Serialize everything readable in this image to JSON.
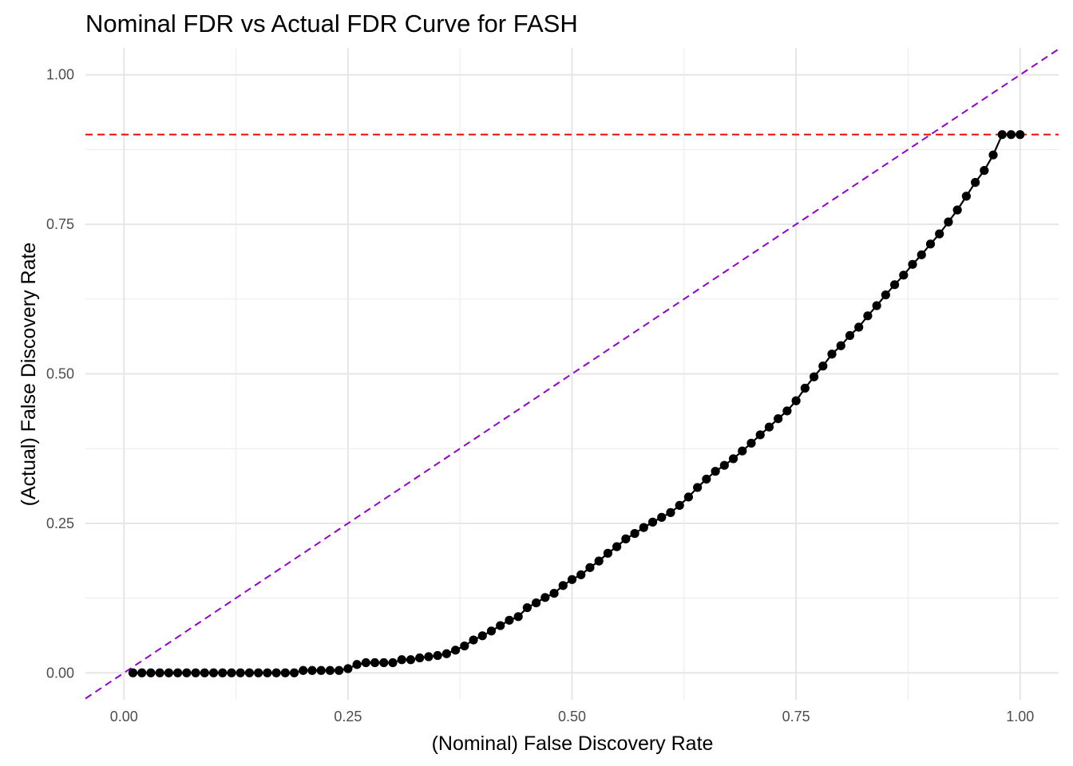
{
  "chart_data": {
    "type": "line",
    "title": "Nominal FDR vs Actual FDR Curve for FASH",
    "xlabel": "(Nominal) False Discovery Rate",
    "ylabel": "(Actual) False Discovery Rate",
    "xlim": [
      -0.043,
      1.043
    ],
    "ylim": [
      -0.045,
      1.045
    ],
    "x_ticks": [
      0,
      0.25,
      0.5,
      0.75,
      1
    ],
    "x_tick_labels": [
      "0.00",
      "0.25",
      "0.50",
      "0.75",
      "1.00"
    ],
    "y_ticks": [
      0,
      0.25,
      0.5,
      0.75,
      1
    ],
    "y_tick_labels": [
      "0.00",
      "0.25",
      "0.50",
      "0.75",
      "1.00"
    ],
    "grid": true,
    "series": [
      {
        "color": "#000000",
        "markers": true,
        "x": [
          0.01,
          0.02,
          0.03,
          0.04,
          0.05,
          0.06,
          0.07,
          0.08,
          0.09,
          0.1,
          0.11,
          0.12,
          0.13,
          0.14,
          0.15,
          0.16,
          0.17,
          0.18,
          0.19,
          0.2,
          0.21,
          0.22,
          0.23,
          0.24,
          0.25,
          0.26,
          0.27,
          0.28,
          0.29,
          0.3,
          0.31,
          0.32,
          0.33,
          0.34,
          0.35,
          0.36,
          0.37,
          0.38,
          0.39,
          0.4,
          0.41,
          0.42,
          0.43,
          0.44,
          0.45,
          0.46,
          0.47,
          0.48,
          0.49,
          0.5,
          0.51,
          0.52,
          0.53,
          0.54,
          0.55,
          0.56,
          0.57,
          0.58,
          0.59,
          0.6,
          0.61,
          0.62,
          0.63,
          0.64,
          0.65,
          0.66,
          0.67,
          0.68,
          0.69,
          0.7,
          0.71,
          0.72,
          0.73,
          0.74,
          0.75,
          0.76,
          0.77,
          0.78,
          0.79,
          0.8,
          0.81,
          0.82,
          0.83,
          0.84,
          0.85,
          0.86,
          0.87,
          0.88,
          0.89,
          0.9,
          0.91,
          0.92,
          0.93,
          0.94,
          0.95,
          0.96,
          0.97,
          0.98,
          0.99,
          1.0
        ],
        "y": [
          0,
          0,
          0,
          0,
          0,
          0,
          0,
          0,
          0,
          0,
          0,
          0,
          0,
          0,
          0,
          0,
          0,
          0,
          0,
          0.004,
          0.004,
          0.004,
          0.004,
          0.004,
          0.007,
          0.014,
          0.017,
          0.017,
          0.017,
          0.017,
          0.022,
          0.022,
          0.025,
          0.027,
          0.029,
          0.032,
          0.038,
          0.045,
          0.055,
          0.062,
          0.07,
          0.079,
          0.088,
          0.094,
          0.109,
          0.117,
          0.126,
          0.133,
          0.146,
          0.156,
          0.164,
          0.176,
          0.187,
          0.2,
          0.211,
          0.224,
          0.233,
          0.243,
          0.252,
          0.26,
          0.268,
          0.28,
          0.294,
          0.31,
          0.324,
          0.337,
          0.347,
          0.358,
          0.371,
          0.384,
          0.398,
          0.411,
          0.425,
          0.438,
          0.455,
          0.476,
          0.495,
          0.513,
          0.533,
          0.547,
          0.564,
          0.578,
          0.597,
          0.614,
          0.632,
          0.649,
          0.665,
          0.683,
          0.699,
          0.717,
          0.734,
          0.754,
          0.774,
          0.797,
          0.82,
          0.84,
          0.866,
          0.9,
          0.9,
          0.9
        ]
      }
    ],
    "reference_lines": [
      {
        "kind": "hline",
        "y": 0.9,
        "color": "#ff0000",
        "dash": true
      },
      {
        "kind": "abline",
        "slope": 1,
        "intercept": 0,
        "color": "#9400d3",
        "dash": true
      }
    ]
  }
}
